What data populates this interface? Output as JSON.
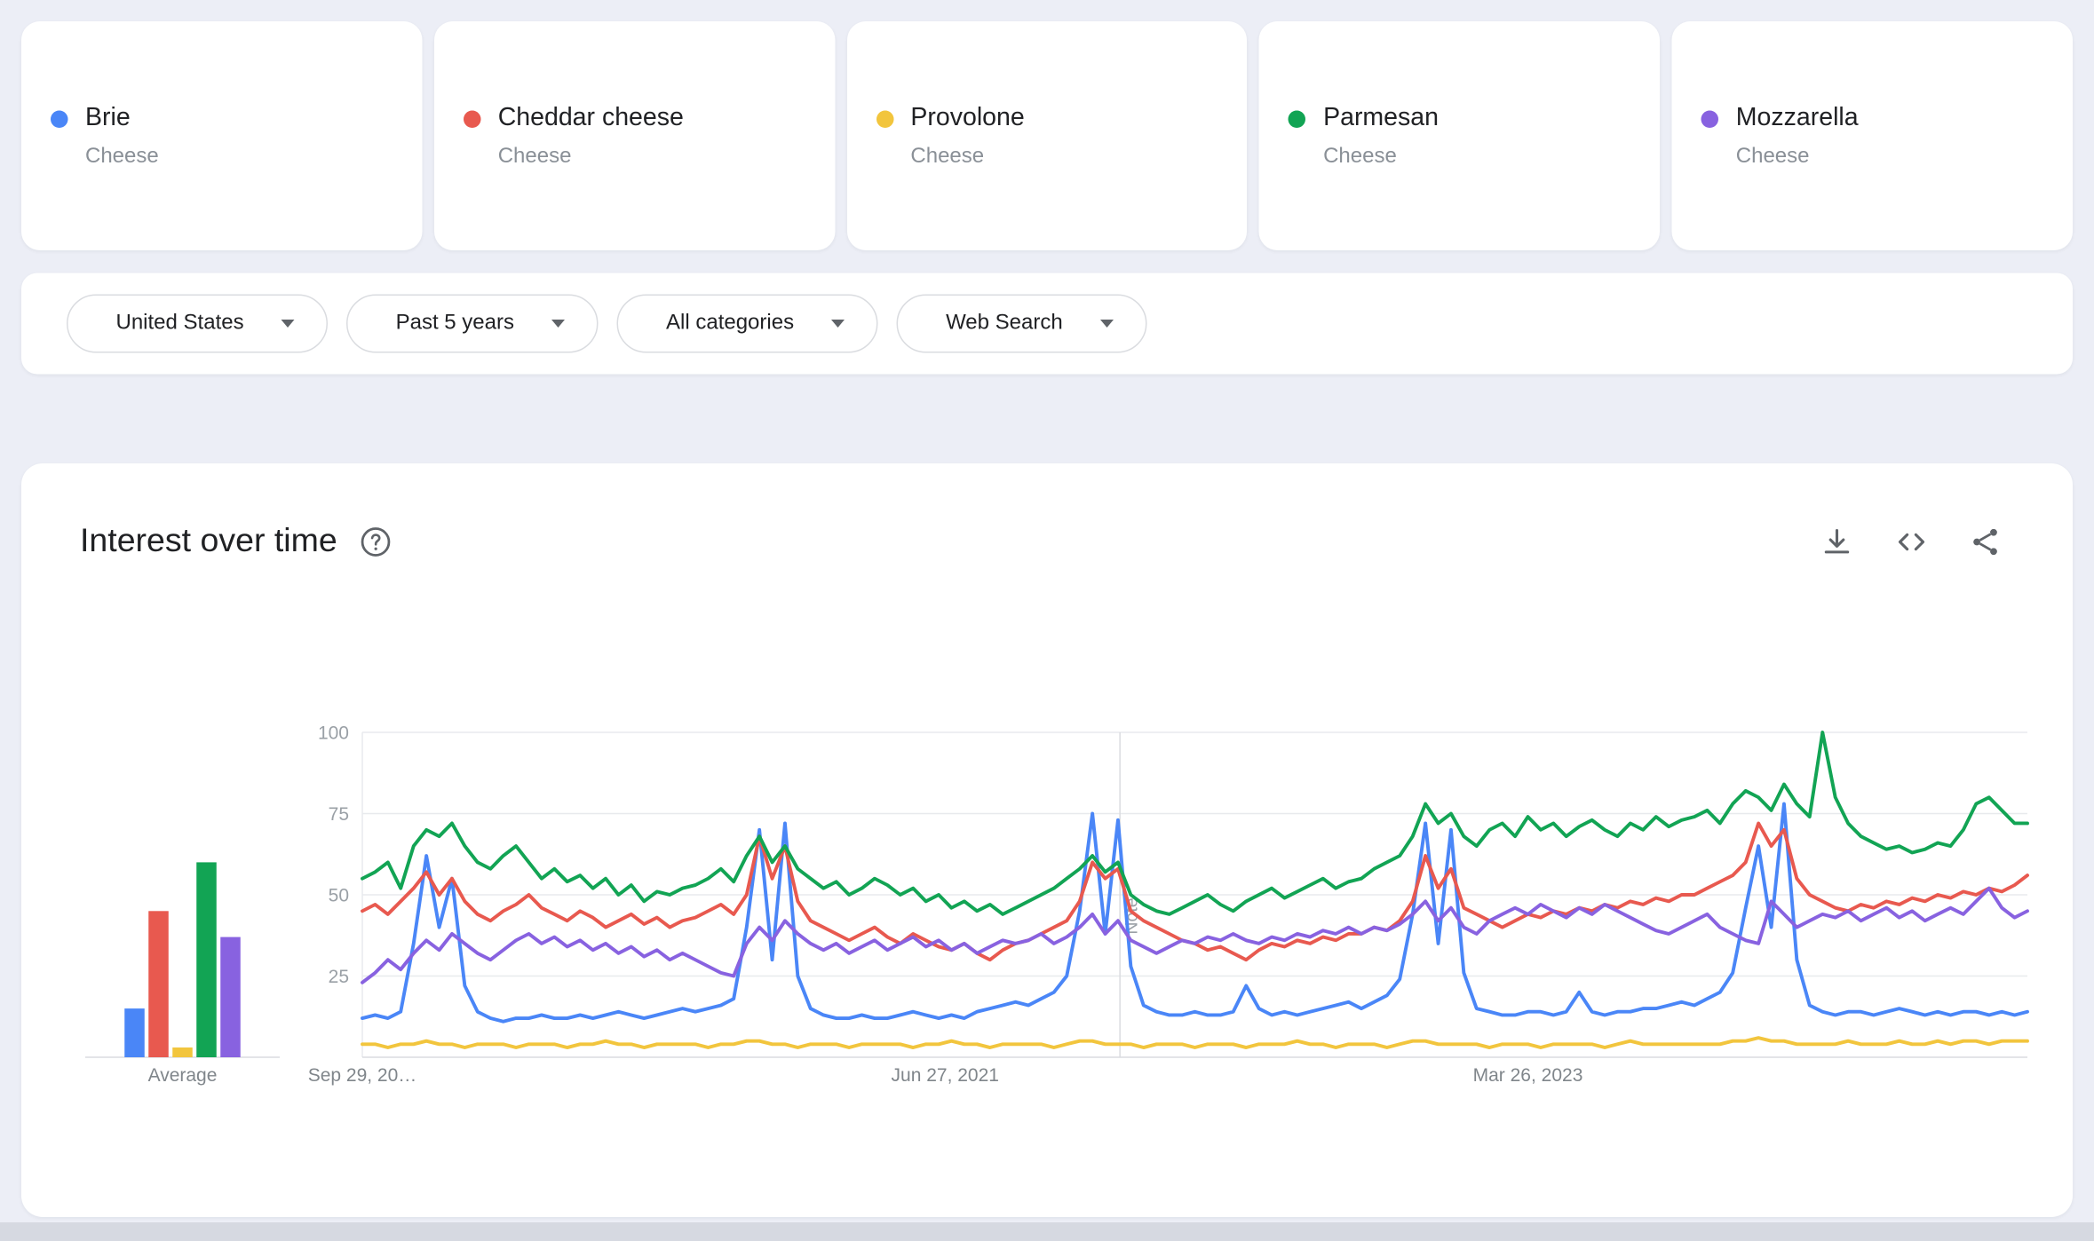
{
  "terms": [
    {
      "label": "Brie",
      "type": "Cheese",
      "color": "#4a86f7"
    },
    {
      "label": "Cheddar cheese",
      "type": "Cheese",
      "color": "#e8594f"
    },
    {
      "label": "Provolone",
      "type": "Cheese",
      "color": "#f2c53d"
    },
    {
      "label": "Parmesan",
      "type": "Cheese",
      "color": "#12a454"
    },
    {
      "label": "Mozzarella",
      "type": "Cheese",
      "color": "#8862e0"
    }
  ],
  "filters": {
    "items": [
      {
        "label": "United States"
      },
      {
        "label": "Past 5 years"
      },
      {
        "label": "All categories"
      },
      {
        "label": "Web Search"
      }
    ]
  },
  "chart_section": {
    "title": "Interest over time",
    "icons": {
      "help": "help-icon",
      "download": "download-icon",
      "embed": "embed-code-icon",
      "share": "share-icon",
      "dropdown": "chevron-down-icon"
    }
  },
  "chart_data": {
    "type": "line",
    "title": "Interest over time",
    "ylim": [
      0,
      100
    ],
    "yticks": [
      25,
      50,
      75,
      100
    ],
    "grid": true,
    "x_tick_labels": [
      {
        "label": "Sep 29, 20…",
        "pos": 0.0
      },
      {
        "label": "Jun 27, 2021",
        "pos": 0.35
      },
      {
        "label": "Mar 26, 2023",
        "pos": 0.7
      }
    ],
    "note_line_pos": 0.455,
    "note_label": "Note",
    "average": {
      "label": "Average",
      "values": [
        15,
        45,
        3,
        60,
        37
      ]
    },
    "series": [
      {
        "name": "Brie",
        "color": "#4a86f7",
        "values": [
          12,
          13,
          12,
          14,
          35,
          62,
          40,
          55,
          22,
          14,
          12,
          11,
          12,
          12,
          13,
          12,
          12,
          13,
          12,
          13,
          14,
          13,
          12,
          13,
          14,
          15,
          14,
          15,
          16,
          18,
          40,
          70,
          30,
          72,
          25,
          15,
          13,
          12,
          12,
          13,
          12,
          12,
          13,
          14,
          13,
          12,
          13,
          12,
          14,
          15,
          16,
          17,
          16,
          18,
          20,
          25,
          45,
          75,
          38,
          73,
          28,
          16,
          14,
          13,
          13,
          14,
          13,
          13,
          14,
          22,
          15,
          13,
          14,
          13,
          14,
          15,
          16,
          17,
          15,
          17,
          19,
          24,
          44,
          72,
          35,
          70,
          26,
          15,
          14,
          13,
          13,
          14,
          14,
          13,
          14,
          20,
          14,
          13,
          14,
          14,
          15,
          15,
          16,
          17,
          16,
          18,
          20,
          26,
          46,
          65,
          40,
          78,
          30,
          16,
          14,
          13,
          14,
          14,
          13,
          14,
          15,
          14,
          13,
          14,
          13,
          14,
          14,
          13,
          14,
          13,
          14
        ]
      },
      {
        "name": "Cheddar cheese",
        "color": "#e8594f",
        "values": [
          45,
          47,
          44,
          48,
          52,
          57,
          50,
          55,
          48,
          44,
          42,
          45,
          47,
          50,
          46,
          44,
          42,
          45,
          43,
          40,
          42,
          44,
          41,
          43,
          40,
          42,
          43,
          45,
          47,
          44,
          50,
          68,
          55,
          65,
          48,
          42,
          40,
          38,
          36,
          38,
          40,
          37,
          35,
          38,
          36,
          34,
          33,
          35,
          32,
          30,
          33,
          35,
          36,
          38,
          40,
          42,
          48,
          60,
          55,
          58,
          45,
          42,
          40,
          38,
          36,
          35,
          33,
          34,
          32,
          30,
          33,
          35,
          34,
          36,
          35,
          37,
          36,
          38,
          38,
          40,
          39,
          42,
          48,
          62,
          52,
          58,
          46,
          44,
          42,
          40,
          42,
          44,
          43,
          45,
          44,
          46,
          45,
          47,
          46,
          48,
          47,
          49,
          48,
          50,
          50,
          52,
          54,
          56,
          60,
          72,
          65,
          70,
          55,
          50,
          48,
          46,
          45,
          47,
          46,
          48,
          47,
          49,
          48,
          50,
          49,
          51,
          50,
          52,
          51,
          53,
          56
        ]
      },
      {
        "name": "Provolone",
        "color": "#f2c53d",
        "values": [
          4,
          4,
          3,
          4,
          4,
          5,
          4,
          4,
          3,
          4,
          4,
          4,
          3,
          4,
          4,
          4,
          3,
          4,
          4,
          5,
          4,
          4,
          3,
          4,
          4,
          4,
          4,
          3,
          4,
          4,
          5,
          5,
          4,
          4,
          3,
          4,
          4,
          4,
          3,
          4,
          4,
          4,
          4,
          3,
          4,
          4,
          5,
          4,
          4,
          3,
          4,
          4,
          4,
          4,
          3,
          4,
          5,
          5,
          4,
          4,
          4,
          3,
          4,
          4,
          4,
          3,
          4,
          4,
          4,
          3,
          4,
          4,
          4,
          5,
          4,
          4,
          3,
          4,
          4,
          4,
          3,
          4,
          5,
          5,
          4,
          4,
          4,
          4,
          3,
          4,
          4,
          4,
          3,
          4,
          4,
          4,
          4,
          3,
          4,
          5,
          4,
          4,
          4,
          4,
          4,
          4,
          4,
          5,
          5,
          6,
          5,
          5,
          4,
          4,
          4,
          4,
          5,
          4,
          4,
          4,
          5,
          4,
          4,
          5,
          4,
          5,
          5,
          4,
          5,
          5,
          5
        ]
      },
      {
        "name": "Parmesan",
        "color": "#12a454",
        "values": [
          55,
          57,
          60,
          52,
          65,
          70,
          68,
          72,
          65,
          60,
          58,
          62,
          65,
          60,
          55,
          58,
          54,
          56,
          52,
          55,
          50,
          53,
          48,
          51,
          50,
          52,
          53,
          55,
          58,
          54,
          62,
          68,
          60,
          65,
          58,
          55,
          52,
          54,
          50,
          52,
          55,
          53,
          50,
          52,
          48,
          50,
          46,
          48,
          45,
          47,
          44,
          46,
          48,
          50,
          52,
          55,
          58,
          62,
          57,
          60,
          50,
          47,
          45,
          44,
          46,
          48,
          50,
          47,
          45,
          48,
          50,
          52,
          49,
          51,
          53,
          55,
          52,
          54,
          55,
          58,
          60,
          62,
          68,
          78,
          72,
          75,
          68,
          65,
          70,
          72,
          68,
          74,
          70,
          72,
          68,
          71,
          73,
          70,
          68,
          72,
          70,
          74,
          71,
          73,
          74,
          76,
          72,
          78,
          82,
          80,
          76,
          84,
          78,
          74,
          100,
          80,
          72,
          68,
          66,
          64,
          65,
          63,
          64,
          66,
          65,
          70,
          78,
          80,
          76,
          72,
          72
        ]
      },
      {
        "name": "Mozzarella",
        "color": "#8862e0",
        "values": [
          23,
          26,
          30,
          27,
          32,
          36,
          33,
          38,
          35,
          32,
          30,
          33,
          36,
          38,
          35,
          37,
          34,
          36,
          33,
          35,
          32,
          34,
          31,
          33,
          30,
          32,
          30,
          28,
          26,
          25,
          35,
          40,
          36,
          42,
          38,
          35,
          33,
          35,
          32,
          34,
          36,
          33,
          35,
          37,
          34,
          36,
          33,
          35,
          32,
          34,
          36,
          35,
          36,
          38,
          35,
          37,
          40,
          44,
          38,
          42,
          36,
          34,
          32,
          34,
          36,
          35,
          37,
          36,
          38,
          36,
          35,
          37,
          36,
          38,
          37,
          39,
          38,
          40,
          38,
          40,
          39,
          41,
          44,
          48,
          42,
          46,
          40,
          38,
          42,
          44,
          46,
          44,
          47,
          45,
          43,
          46,
          44,
          47,
          45,
          43,
          41,
          39,
          38,
          40,
          42,
          44,
          40,
          38,
          36,
          35,
          48,
          44,
          40,
          42,
          44,
          43,
          45,
          42,
          44,
          46,
          43,
          45,
          42,
          44,
          46,
          44,
          48,
          52,
          46,
          43,
          45
        ]
      }
    ]
  }
}
